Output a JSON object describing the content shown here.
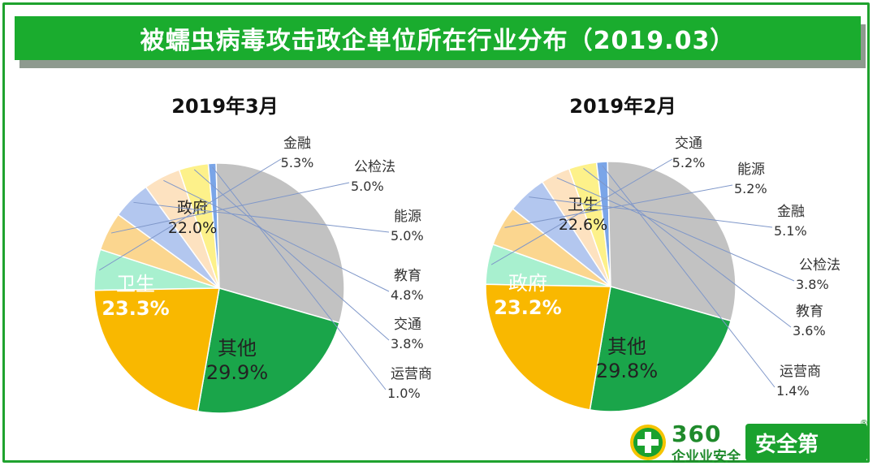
{
  "title": "被蠕虫病毒攻击政企单位所在行业分布（2019.03）",
  "chart_data": [
    {
      "type": "pie",
      "title": "2019年3月",
      "slices": [
        {
          "label": "卫生",
          "value": 23.3,
          "display": "23.3%",
          "color": "#1aa54a"
        },
        {
          "label": "政府",
          "value": 22.0,
          "display": "22.0%",
          "color": "#f9b800"
        },
        {
          "label": "金融",
          "value": 5.3,
          "display": "5.3%",
          "color": "#a8f0cf"
        },
        {
          "label": "公检法",
          "value": 5.0,
          "display": "5.0%",
          "color": "#fbd68f"
        },
        {
          "label": "能源",
          "value": 5.0,
          "display": "5.0%",
          "color": "#b3c7ef"
        },
        {
          "label": "教育",
          "value": 4.8,
          "display": "4.8%",
          "color": "#fde2c0"
        },
        {
          "label": "交通",
          "value": 3.8,
          "display": "3.8%",
          "color": "#fdf18a"
        },
        {
          "label": "运营商",
          "value": 1.0,
          "display": "1.0%",
          "color": "#7aa5e8"
        },
        {
          "label": "其他",
          "value": 29.9,
          "display": "29.9%",
          "color": "#c2c2c2"
        }
      ]
    },
    {
      "type": "pie",
      "title": "2019年2月",
      "slices": [
        {
          "label": "政府",
          "value": 23.2,
          "display": "23.2%",
          "color": "#1aa54a"
        },
        {
          "label": "卫生",
          "value": 22.6,
          "display": "22.6%",
          "color": "#f9b800"
        },
        {
          "label": "交通",
          "value": 5.2,
          "display": "5.2%",
          "color": "#a8f0cf"
        },
        {
          "label": "能源",
          "value": 5.2,
          "display": "5.2%",
          "color": "#fbd68f"
        },
        {
          "label": "金融",
          "value": 5.1,
          "display": "5.1%",
          "color": "#b3c7ef"
        },
        {
          "label": "公检法",
          "value": 3.8,
          "display": "3.8%",
          "color": "#fde2c0"
        },
        {
          "label": "教育",
          "value": 3.6,
          "display": "3.6%",
          "color": "#fdf18a"
        },
        {
          "label": "运营商",
          "value": 1.4,
          "display": "1.4%",
          "color": "#7aa5e8"
        },
        {
          "label": "其他",
          "value": 29.8,
          "display": "29.8%",
          "color": "#c2c2c2"
        }
      ]
    }
  ],
  "logo": {
    "number": "360",
    "subtitle": "企业业安全",
    "badge": "安全第",
    "mark": "®"
  }
}
